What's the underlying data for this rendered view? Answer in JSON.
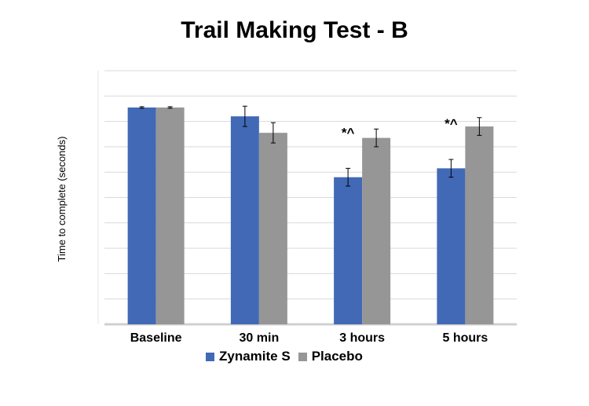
{
  "chart_data": {
    "type": "bar",
    "title": "Trail Making Test - B",
    "xlabel": "",
    "ylabel": "Time to complete (seconds)",
    "categories": [
      "Baseline",
      "30 min",
      "3 hours",
      "5 hours"
    ],
    "ylim": [
      0,
      100
    ],
    "grid": true,
    "legend_position": "bottom",
    "series": [
      {
        "name": "Zynamite S",
        "color": "#4169B6",
        "values": [
          85.5,
          82,
          58,
          61.5
        ],
        "errors": [
          0.3,
          4,
          3.5,
          3.5
        ]
      },
      {
        "name": "Placebo",
        "color": "#969696",
        "values": [
          85.5,
          75.5,
          73.5,
          78
        ],
        "errors": [
          0.3,
          4,
          3.5,
          3.5
        ]
      }
    ],
    "annotations": [
      {
        "category": "3 hours",
        "text": "*^"
      },
      {
        "category": "5 hours",
        "text": "*^"
      }
    ]
  }
}
